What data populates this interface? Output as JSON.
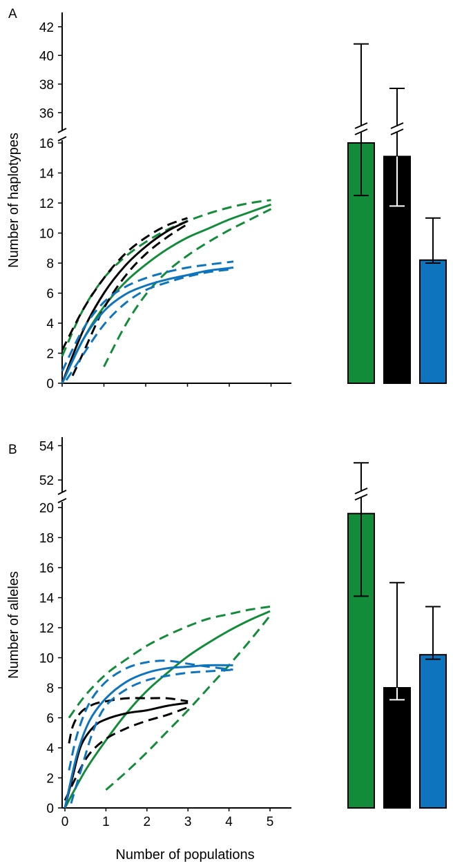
{
  "colors": {
    "green": "#138c3a",
    "black": "#000000",
    "blue": "#0d74bd"
  },
  "chart_data": [
    {
      "panel": "A",
      "type": "line+bar",
      "ylabel": "Number of haplotypes",
      "xlabel": "Number of populations",
      "xlim": [
        0,
        5.5
      ],
      "ylim_lower": [
        0,
        16
      ],
      "ylim_upper": [
        35,
        43
      ],
      "yticks_lower": [
        "0",
        "2",
        "4",
        "6",
        "8",
        "10",
        "12",
        "14",
        "16"
      ],
      "yticks_upper": [
        "36",
        "38",
        "40",
        "42"
      ],
      "series": [
        {
          "name": "green",
          "color": "green",
          "style": "solid",
          "x": [
            0,
            0.5,
            1,
            1.5,
            2,
            2.5,
            3,
            3.5,
            4,
            4.5,
            5
          ],
          "y": [
            0,
            2.9,
            5.1,
            6.7,
            7.9,
            8.9,
            9.7,
            10.3,
            10.9,
            11.4,
            11.9
          ]
        },
        {
          "name": "green-upper",
          "color": "green",
          "style": "dashed",
          "x": [
            0,
            0.5,
            1,
            1.5,
            2,
            2.5,
            3,
            3.5,
            4,
            4.5,
            5
          ],
          "y": [
            1.8,
            4.9,
            7.0,
            8.4,
            9.4,
            10.2,
            10.8,
            11.3,
            11.7,
            12.0,
            12.2
          ]
        },
        {
          "name": "green-lower",
          "color": "green",
          "style": "dashed",
          "x": [
            1,
            1.5,
            2,
            2.5,
            3,
            3.5,
            4,
            4.5,
            5
          ],
          "y": [
            1.1,
            3.8,
            5.9,
            7.4,
            8.5,
            9.4,
            10.2,
            10.9,
            11.6
          ]
        },
        {
          "name": "black",
          "color": "black",
          "style": "solid",
          "x": [
            0,
            0.5,
            1,
            1.5,
            2,
            2.5,
            3
          ],
          "y": [
            0,
            3.5,
            6.0,
            7.8,
            9.1,
            10.1,
            10.8
          ]
        },
        {
          "name": "black-upper",
          "color": "black",
          "style": "dashed",
          "x": [
            0,
            0.5,
            1,
            1.5,
            2,
            2.5,
            3
          ],
          "y": [
            2.2,
            4.9,
            7.0,
            8.6,
            9.7,
            10.5,
            11.0
          ]
        },
        {
          "name": "black-lower",
          "color": "black",
          "style": "dashed",
          "x": [
            0.25,
            0.5,
            1,
            1.5,
            2,
            2.5,
            3
          ],
          "y": [
            0.5,
            2.0,
            5.0,
            7.1,
            8.6,
            9.7,
            10.6
          ]
        },
        {
          "name": "blue",
          "color": "blue",
          "style": "solid",
          "x": [
            0,
            0.5,
            1,
            1.5,
            2,
            2.5,
            3,
            3.5,
            4.1
          ],
          "y": [
            0,
            2.9,
            4.8,
            5.9,
            6.5,
            6.9,
            7.2,
            7.5,
            7.7
          ]
        },
        {
          "name": "blue-upper",
          "color": "blue",
          "style": "dashed",
          "x": [
            0,
            0.5,
            1,
            1.5,
            2,
            2.5,
            3,
            3.5,
            4.1
          ],
          "y": [
            0.8,
            3.6,
            5.4,
            6.4,
            7.0,
            7.4,
            7.7,
            7.9,
            8.1
          ]
        },
        {
          "name": "blue-lower",
          "color": "blue",
          "style": "dashed",
          "x": [
            0.1,
            0.5,
            1,
            1.5,
            2,
            2.5,
            3,
            3.5,
            4.1
          ],
          "y": [
            0.2,
            1.9,
            3.9,
            5.3,
            6.2,
            6.7,
            7.1,
            7.4,
            7.6
          ]
        }
      ],
      "bars": [
        {
          "name": "green",
          "color": "green",
          "value": 16,
          "err_low": 12.5,
          "err_high": 40.8
        },
        {
          "name": "black",
          "color": "black",
          "value": 15.1,
          "err_low": 11.8,
          "err_high": 37.7
        },
        {
          "name": "blue",
          "color": "blue",
          "value": 8.2,
          "err_low": 8.0,
          "err_high": 11.0
        }
      ]
    },
    {
      "panel": "B",
      "type": "line+bar",
      "ylabel": "Number of alleles",
      "xlabel": "Number of populations",
      "xlim": [
        0,
        5.5
      ],
      "ylim_lower": [
        0,
        20
      ],
      "ylim_upper": [
        51.2,
        54.5
      ],
      "yticks_lower": [
        "0",
        "2",
        "4",
        "6",
        "8",
        "10",
        "12",
        "14",
        "16",
        "18",
        "20"
      ],
      "yticks_upper": [
        "52",
        "54"
      ],
      "xticks": [
        "0",
        "1",
        "2",
        "3",
        "4",
        "5"
      ],
      "series": [
        {
          "name": "green",
          "color": "green",
          "style": "solid",
          "x": [
            0,
            0.5,
            1,
            1.5,
            2,
            2.5,
            3,
            3.5,
            4,
            4.5,
            5
          ],
          "y": [
            0,
            2.5,
            4.5,
            6.3,
            7.8,
            9.0,
            10.1,
            11.0,
            11.8,
            12.5,
            13.1
          ]
        },
        {
          "name": "green-upper",
          "color": "green",
          "style": "dashed",
          "x": [
            0.1,
            0.5,
            1,
            1.5,
            2,
            2.5,
            3,
            3.5,
            4,
            4.5,
            5
          ],
          "y": [
            6.0,
            7.5,
            8.9,
            9.9,
            10.8,
            11.5,
            12.1,
            12.6,
            12.9,
            13.2,
            13.4
          ]
        },
        {
          "name": "green-lower",
          "color": "green",
          "style": "dashed",
          "x": [
            1,
            1.5,
            2,
            2.5,
            3,
            3.5,
            4,
            4.5,
            5
          ],
          "y": [
            1.2,
            2.4,
            3.7,
            5.1,
            6.5,
            8.0,
            9.5,
            11.1,
            12.8
          ]
        },
        {
          "name": "black",
          "color": "black",
          "style": "solid",
          "x": [
            0,
            0.2,
            0.4,
            0.7,
            1,
            1.5,
            2,
            2.5,
            3
          ],
          "y": [
            0,
            2.2,
            4.2,
            5.4,
            5.9,
            6.3,
            6.5,
            6.8,
            7.0
          ]
        },
        {
          "name": "black-upper",
          "color": "black",
          "style": "dashed",
          "x": [
            0.1,
            0.2,
            0.4,
            0.7,
            1,
            1.5,
            2,
            2.5,
            3
          ],
          "y": [
            4.3,
            5.5,
            6.4,
            6.9,
            7.1,
            7.3,
            7.3,
            7.3,
            7.1
          ]
        },
        {
          "name": "black-lower",
          "color": "black",
          "style": "dashed",
          "x": [
            0,
            0.3,
            0.6,
            1,
            1.5,
            2,
            2.5,
            3
          ],
          "y": [
            0.5,
            2.2,
            3.6,
            4.6,
            5.3,
            5.8,
            6.2,
            6.7
          ]
        },
        {
          "name": "blue",
          "color": "blue",
          "style": "solid",
          "x": [
            0,
            0.3,
            0.6,
            1,
            1.5,
            2,
            2.5,
            3,
            3.5,
            4.1
          ],
          "y": [
            0,
            3.6,
            5.8,
            7.3,
            8.4,
            9.0,
            9.3,
            9.4,
            9.5,
            9.5
          ]
        },
        {
          "name": "blue-upper",
          "color": "blue",
          "style": "dashed",
          "x": [
            0.1,
            0.3,
            0.6,
            1,
            1.5,
            2,
            2.5,
            3,
            3.5,
            4.1
          ],
          "y": [
            2.5,
            4.9,
            7.0,
            8.4,
            9.3,
            9.7,
            9.8,
            9.6,
            9.4,
            9.2
          ]
        },
        {
          "name": "blue-lower",
          "color": "blue",
          "style": "dashed",
          "x": [
            0.15,
            0.4,
            0.7,
            1,
            1.5,
            2,
            2.5,
            3,
            3.5,
            4.1
          ],
          "y": [
            0.3,
            2.6,
            5.2,
            6.8,
            7.9,
            8.5,
            8.8,
            9.0,
            9.1,
            9.2
          ]
        }
      ],
      "bars": [
        {
          "name": "green",
          "color": "green",
          "value": 19.6,
          "err_low": 14.1,
          "err_high": 53.0
        },
        {
          "name": "black",
          "color": "black",
          "value": 8.0,
          "err_low": 7.2,
          "err_high": 15.0
        },
        {
          "name": "blue",
          "color": "blue",
          "value": 10.2,
          "err_low": 9.9,
          "err_high": 13.4
        }
      ]
    }
  ]
}
